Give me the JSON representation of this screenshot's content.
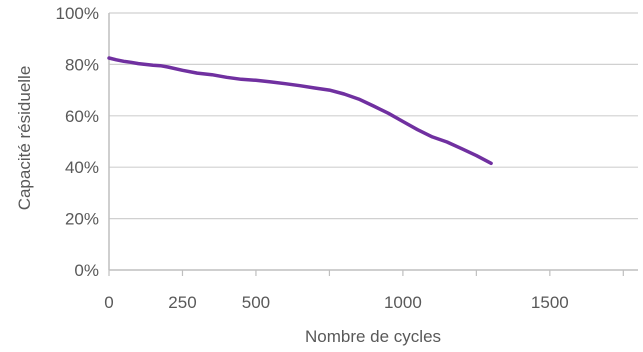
{
  "chart_data": {
    "type": "line",
    "title": "",
    "xlabel": "Nombre de cycles",
    "ylabel": "Capacité résiduelle",
    "xlim": [
      0,
      1800
    ],
    "ylim": [
      0,
      100
    ],
    "x_ticks": [
      0,
      250,
      500,
      750,
      1000,
      1250,
      1500,
      1750
    ],
    "x_tick_labels": [
      "0",
      "250",
      "500",
      "1000",
      "1500"
    ],
    "x_tick_label_values": [
      0,
      250,
      500,
      1000,
      1500
    ],
    "y_ticks": [
      0,
      20,
      40,
      60,
      80,
      100
    ],
    "y_tick_labels": [
      "0%",
      "20%",
      "40%",
      "60%",
      "80%",
      "100%"
    ],
    "grid": "horizontal",
    "legend": "none",
    "line_color": "#7030A0",
    "series": [
      {
        "values": [
          [
            0,
            82.5
          ],
          [
            25,
            81.8
          ],
          [
            50,
            81.2
          ],
          [
            75,
            80.8
          ],
          [
            100,
            80.3
          ],
          [
            150,
            79.7
          ],
          [
            175,
            79.5
          ],
          [
            200,
            79.0
          ],
          [
            250,
            77.7
          ],
          [
            300,
            76.6
          ],
          [
            350,
            76.0
          ],
          [
            400,
            75.0
          ],
          [
            450,
            74.2
          ],
          [
            500,
            73.8
          ],
          [
            550,
            73.2
          ],
          [
            600,
            72.5
          ],
          [
            650,
            71.7
          ],
          [
            700,
            70.8
          ],
          [
            750,
            70.0
          ],
          [
            800,
            68.5
          ],
          [
            850,
            66.5
          ],
          [
            900,
            63.8
          ],
          [
            950,
            61.0
          ],
          [
            1000,
            57.8
          ],
          [
            1050,
            54.6
          ],
          [
            1100,
            51.8
          ],
          [
            1150,
            49.8
          ],
          [
            1200,
            47.2
          ],
          [
            1250,
            44.5
          ],
          [
            1300,
            41.5
          ]
        ]
      }
    ]
  }
}
